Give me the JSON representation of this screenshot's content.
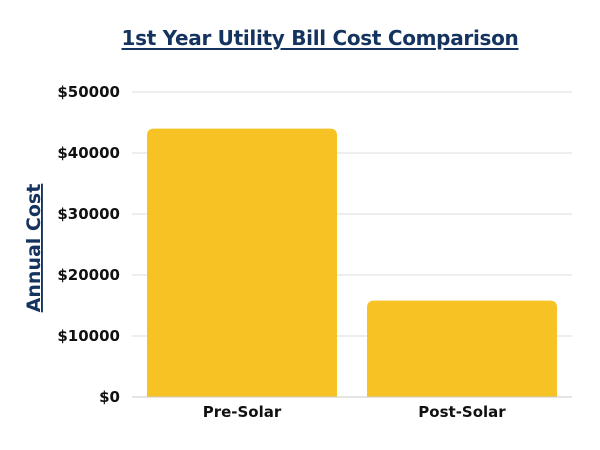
{
  "chart_data": {
    "type": "bar",
    "title": "1st Year Utility Bill Cost Comparison",
    "xlabel": "",
    "ylabel": "Annual Cost",
    "categories": [
      "Pre-Solar",
      "Post-Solar"
    ],
    "values": [
      44000,
      15800
    ],
    "ylim": [
      0,
      50000
    ],
    "yticks": [
      0,
      10000,
      20000,
      30000,
      40000,
      50000
    ],
    "ytick_labels": [
      "$0",
      "$10000",
      "$20000",
      "$30000",
      "$40000",
      "$50000"
    ],
    "grid": true,
    "legend": "none",
    "bar_color": "#f7c324",
    "title_color": "#14345f",
    "grid_color": "#dddddd"
  }
}
